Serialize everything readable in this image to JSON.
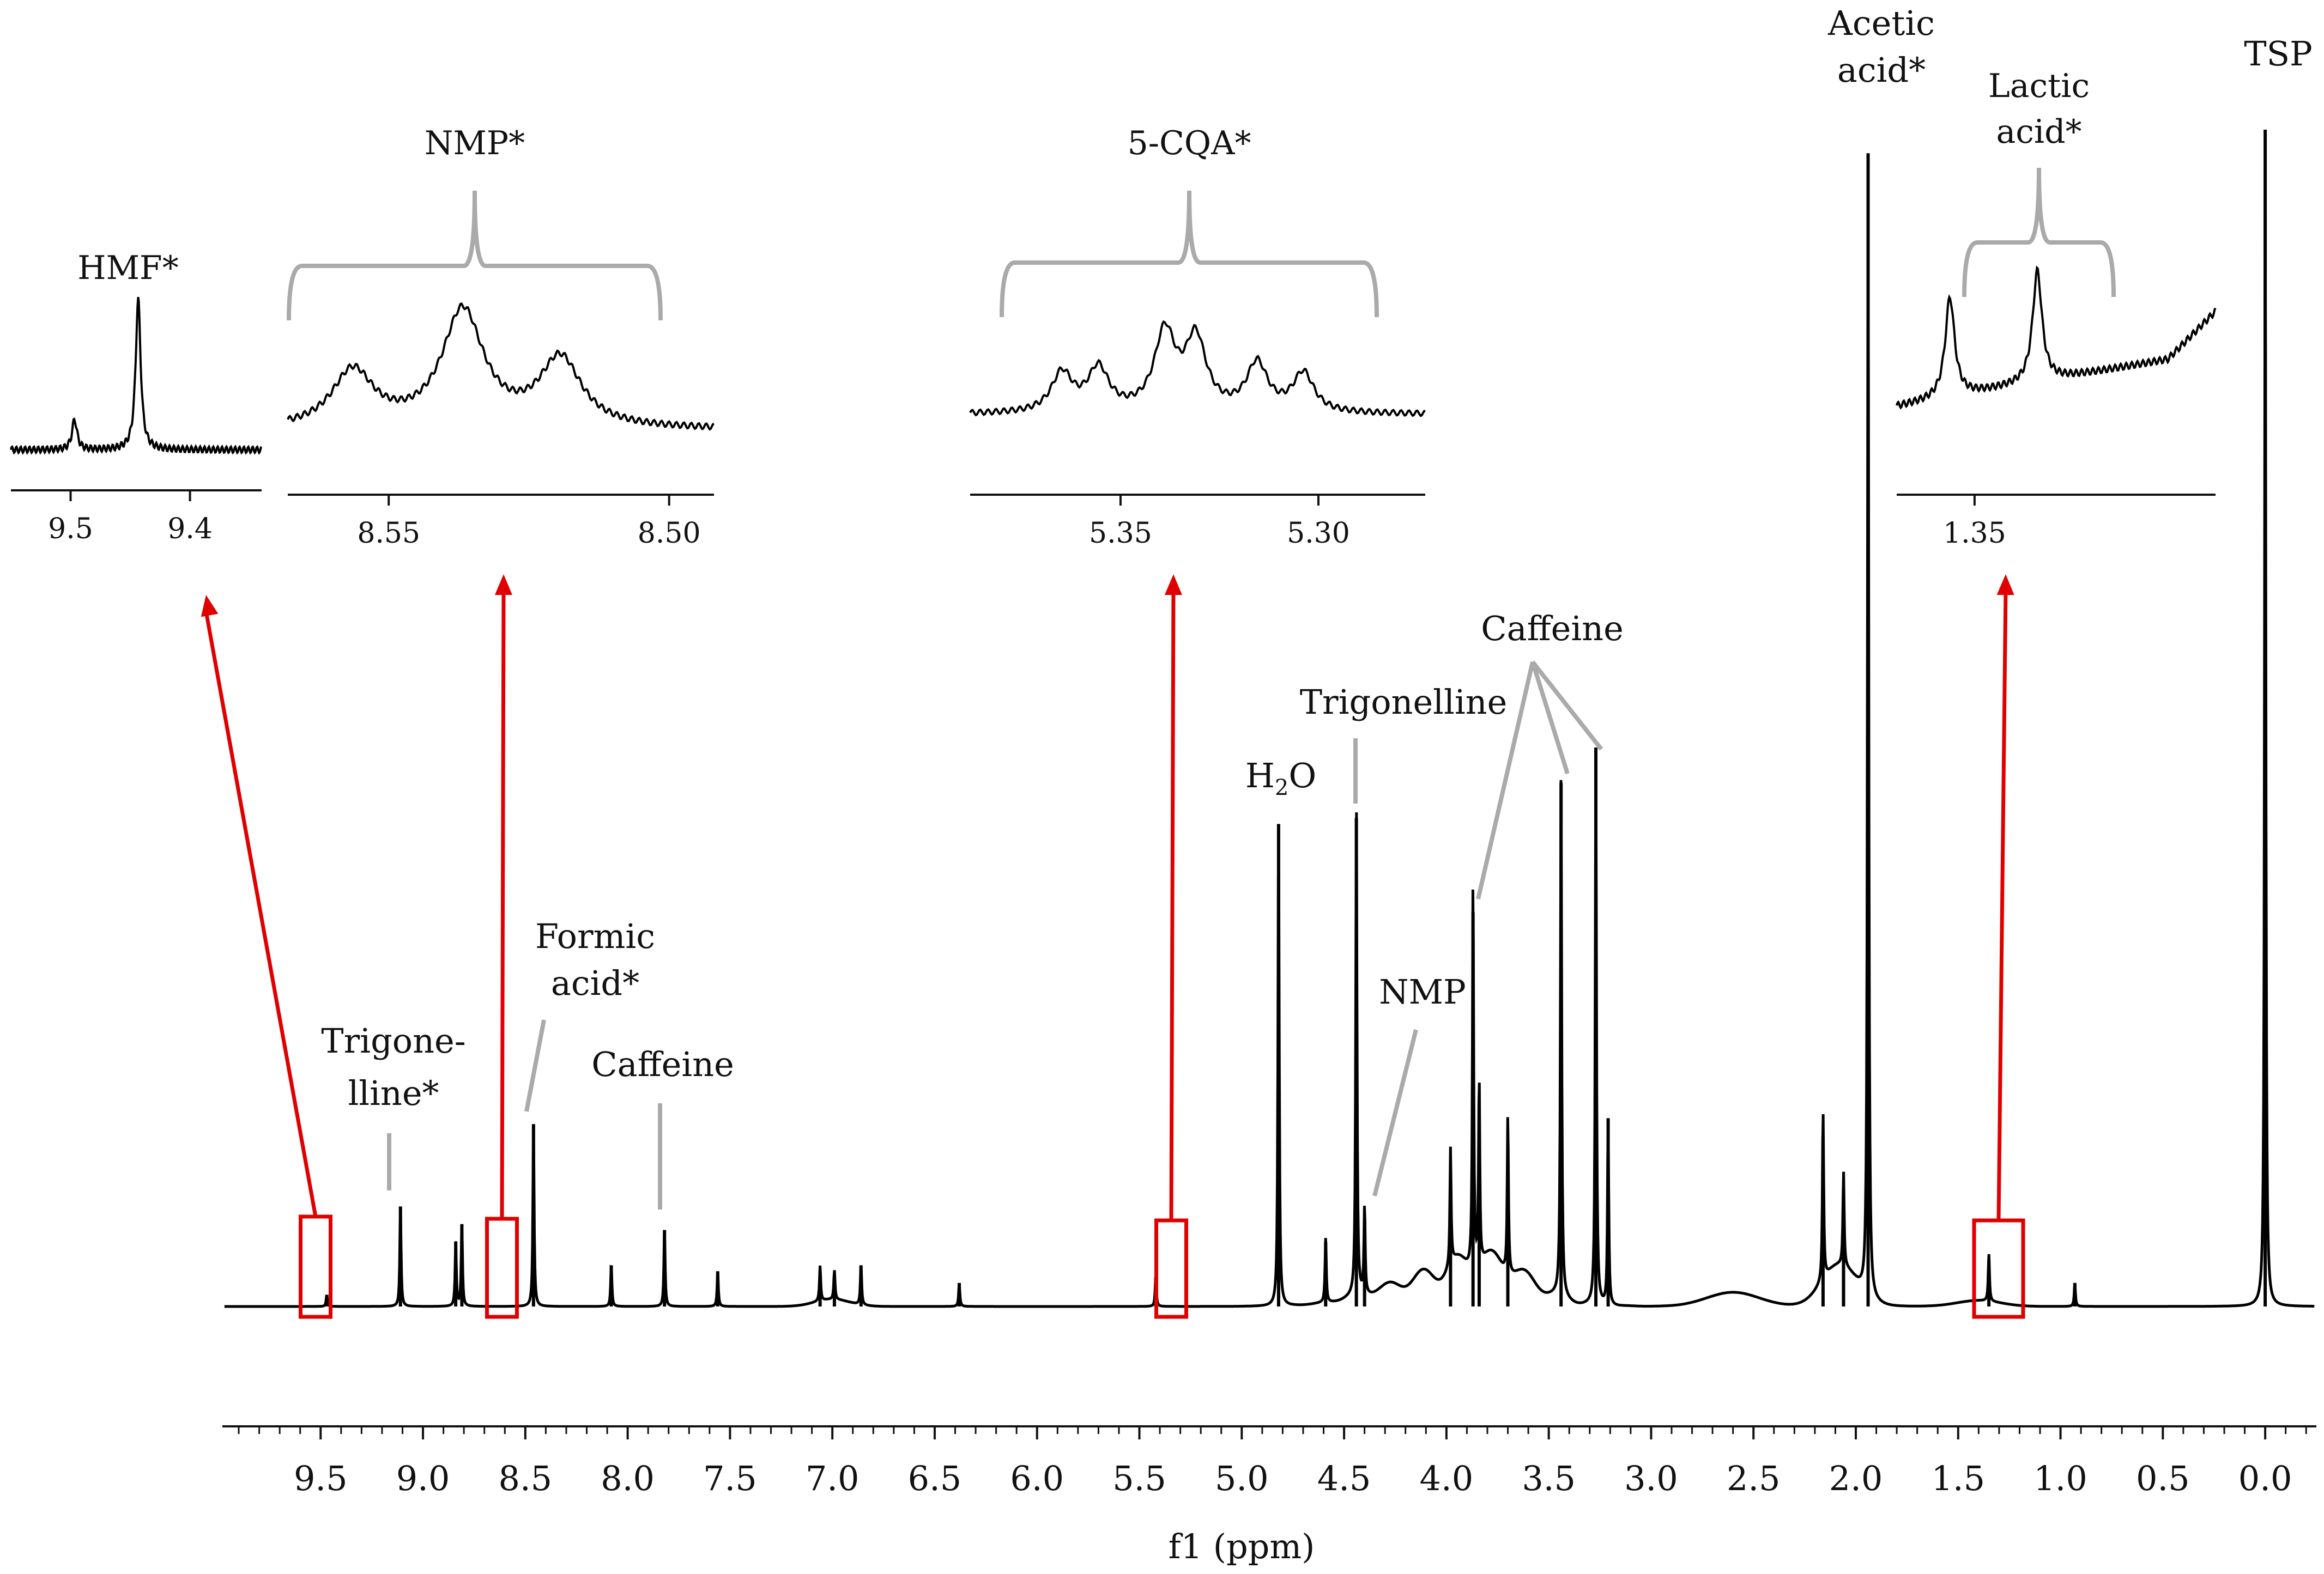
{
  "chart_data": {
    "type": "line",
    "title": "",
    "xlabel": "f1 (ppm)",
    "ylabel": "",
    "xlim": [
      9.98,
      -0.25
    ],
    "x_reversed": true,
    "grid": false,
    "ticks": [
      {
        "v": 9.5,
        "label": "9.5"
      },
      {
        "v": 9.0,
        "label": "9.0"
      },
      {
        "v": 8.5,
        "label": "8.5"
      },
      {
        "v": 8.0,
        "label": "8.0"
      },
      {
        "v": 7.5,
        "label": "7.5"
      },
      {
        "v": 7.0,
        "label": "7.0"
      },
      {
        "v": 6.5,
        "label": "6.5"
      },
      {
        "v": 6.0,
        "label": "6.0"
      },
      {
        "v": 5.5,
        "label": "5.5"
      },
      {
        "v": 5.0,
        "label": "5.0"
      },
      {
        "v": 4.5,
        "label": "4.5"
      },
      {
        "v": 4.0,
        "label": "4.0"
      },
      {
        "v": 3.5,
        "label": "3.5"
      },
      {
        "v": 3.0,
        "label": "3.0"
      },
      {
        "v": 2.5,
        "label": "2.5"
      },
      {
        "v": 2.0,
        "label": "2.0"
      },
      {
        "v": 1.5,
        "label": "1.5"
      },
      {
        "v": 1.0,
        "label": "1.0"
      },
      {
        "v": 0.5,
        "label": "0.5"
      },
      {
        "v": 0.0,
        "label": "0.0"
      }
    ],
    "y_relative_scale": "0 = baseline, 100 = tallest (TSP) peak",
    "peaks": [
      {
        "x": 9.47,
        "y": 1.0
      },
      {
        "x": 9.11,
        "y": 8.5
      },
      {
        "x": 8.84,
        "y": 5.5
      },
      {
        "x": 8.81,
        "y": 7.0
      },
      {
        "x": 8.46,
        "y": 15.5
      },
      {
        "x": 8.08,
        "y": 3.5
      },
      {
        "x": 7.82,
        "y": 6.5
      },
      {
        "x": 7.56,
        "y": 3.0
      },
      {
        "x": 7.06,
        "y": 3.0
      },
      {
        "x": 6.99,
        "y": 2.5
      },
      {
        "x": 6.86,
        "y": 3.5
      },
      {
        "x": 6.38,
        "y": 2.0
      },
      {
        "x": 5.42,
        "y": 2.5
      },
      {
        "x": 4.82,
        "y": 41.0
      },
      {
        "x": 4.59,
        "y": 5.5
      },
      {
        "x": 4.44,
        "y": 41.5
      },
      {
        "x": 4.4,
        "y": 7.5
      },
      {
        "x": 3.98,
        "y": 10.0
      },
      {
        "x": 3.87,
        "y": 33.5
      },
      {
        "x": 3.84,
        "y": 16.0
      },
      {
        "x": 3.7,
        "y": 13.5
      },
      {
        "x": 3.44,
        "y": 44.5
      },
      {
        "x": 3.27,
        "y": 47.5
      },
      {
        "x": 3.21,
        "y": 16.0
      },
      {
        "x": 2.16,
        "y": 14.5
      },
      {
        "x": 2.06,
        "y": 8.0
      },
      {
        "x": 1.94,
        "y": 98.0
      },
      {
        "x": 1.35,
        "y": 4.0
      },
      {
        "x": 0.93,
        "y": 2.0
      },
      {
        "x": 0.0,
        "y": 100.0
      }
    ],
    "annotations": [
      {
        "text": "Trigone-",
        "text2": "lline*",
        "x": 9.11
      },
      {
        "text": "Formic",
        "text2": "acid*",
        "x": 8.46
      },
      {
        "text": "Caffeine",
        "x": 7.82
      },
      {
        "text": "H",
        "sub": "2",
        "tail": "O",
        "x": 4.82
      },
      {
        "text": "Trigonelline",
        "x": 4.44
      },
      {
        "text": "NMP",
        "x": 4.39
      },
      {
        "text": "Caffeine",
        "x": [
          3.87,
          3.44,
          3.27
        ]
      },
      {
        "text": "Acetic",
        "text2": "acid*",
        "x": 1.94
      },
      {
        "text": "TSP",
        "x": 0.0
      }
    ],
    "insets": [
      {
        "label": "HMF*",
        "range": [
          9.55,
          9.34
        ],
        "ticks": [
          "9.5",
          "9.4"
        ],
        "tick_values": [
          9.5,
          9.4
        ]
      },
      {
        "label": "NMP*",
        "range": [
          8.568,
          8.492
        ],
        "ticks": [
          "8.55",
          "8.50"
        ],
        "tick_values": [
          8.55,
          8.5
        ]
      },
      {
        "label": "5-CQA*",
        "range": [
          5.388,
          5.273
        ],
        "ticks": [
          "5.35",
          "5.30"
        ],
        "tick_values": [
          5.35,
          5.3
        ]
      },
      {
        "label": "Lactic",
        "label2": "acid*",
        "range": [
          1.368,
          1.2943
        ],
        "ticks": [
          "1.35"
        ],
        "tick_values": [
          1.35
        ]
      }
    ],
    "highlight_regions_ppm": [
      9.47,
      8.56,
      5.34,
      1.34
    ]
  }
}
